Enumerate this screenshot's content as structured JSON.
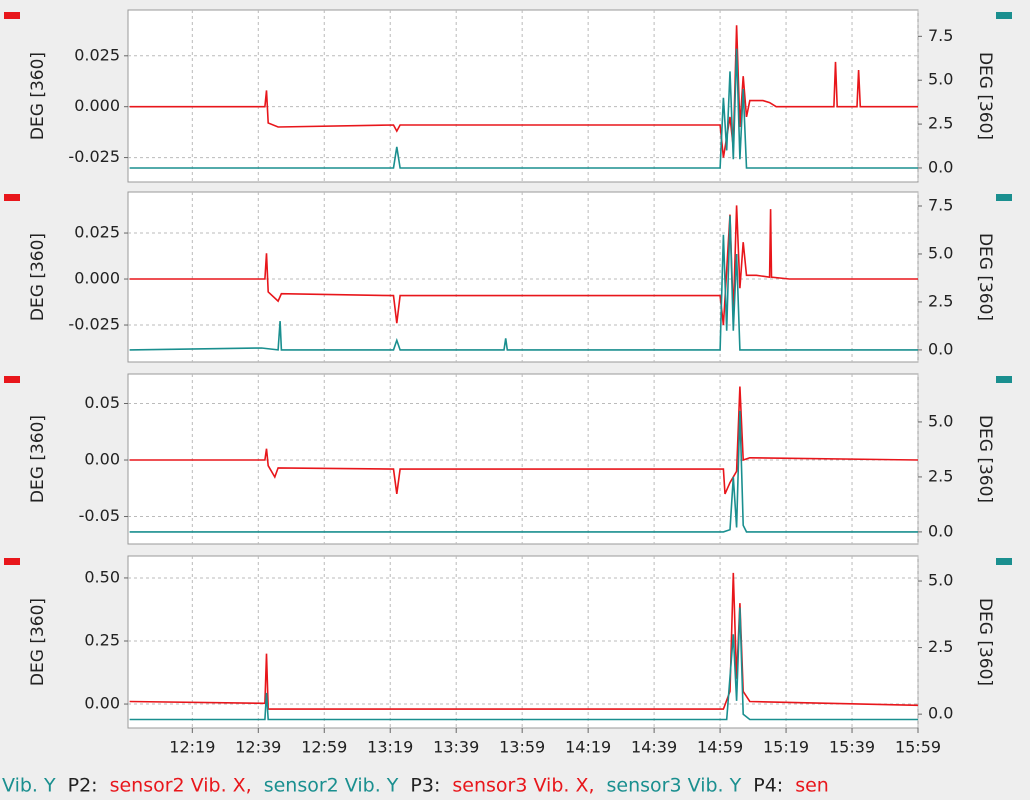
{
  "x_axis": {
    "xlim": [
      719.5,
      959
    ],
    "xticks": [
      {
        "value": 739,
        "label": "12:19"
      },
      {
        "value": 759,
        "label": "12:39"
      },
      {
        "value": 779,
        "label": "12:59"
      },
      {
        "value": 799,
        "label": "13:19"
      },
      {
        "value": 819,
        "label": "13:39"
      },
      {
        "value": 839,
        "label": "13:59"
      },
      {
        "value": 859,
        "label": "14:19"
      },
      {
        "value": 879,
        "label": "14:39"
      },
      {
        "value": 899,
        "label": "14:59"
      },
      {
        "value": 919,
        "label": "15:19"
      },
      {
        "value": 939,
        "label": "15:39"
      },
      {
        "value": 959,
        "label": "15:59"
      }
    ]
  },
  "chart_data": [
    {
      "type": "line",
      "ylabel": "DEG [360]",
      "y2label": "DEG [360]",
      "grid": true,
      "ylim": [
        -0.037,
        0.0475
      ],
      "yticks": [
        0.025,
        {
          "value": 0,
          "label": "0.000"
        },
        -0.025
      ],
      "y2lim": [
        -0.8,
        9.0
      ],
      "y2ticks": [
        7.5,
        {
          "value": 5,
          "label": "5.0"
        },
        2.5,
        {
          "value": 0,
          "label": "0.0"
        }
      ],
      "series": [
        {
          "color": "#e8161b",
          "x": [
            720,
            761,
            761.5,
            762,
            765,
            800,
            801,
            802,
            899,
            900,
            902,
            903,
            904,
            905,
            906,
            907,
            908,
            912,
            914,
            916,
            933.5,
            934,
            934.5,
            940.5,
            941,
            941.5,
            959
          ],
          "values": [
            0,
            0,
            0.008,
            -0.008,
            -0.01,
            -0.009,
            -0.012,
            -0.009,
            -0.009,
            -0.025,
            -0.005,
            -0.02,
            0.04,
            -0.01,
            0.015,
            -0.005,
            0.003,
            0.003,
            0.002,
            0,
            0,
            0.022,
            0,
            0,
            0.018,
            0,
            0
          ]
        },
        {
          "color": "#1a8f8f",
          "axis": "y2",
          "x": [
            720,
            800,
            801,
            802,
            899,
            900,
            901,
            902,
            903,
            904,
            905,
            906,
            907,
            959
          ],
          "values": [
            0,
            0,
            1.2,
            0,
            0,
            4.0,
            1.0,
            5.5,
            0.5,
            6.8,
            0.5,
            4.5,
            0,
            0
          ]
        }
      ]
    },
    {
      "type": "line",
      "ylabel": "DEG [360]",
      "y2label": "DEG [360]",
      "grid": true,
      "ylim": [
        -0.0451,
        0.0473
      ],
      "yticks": [
        0.025,
        {
          "value": 0,
          "label": "0.000"
        },
        -0.025
      ],
      "y2lim": [
        -0.63,
        8.23
      ],
      "y2ticks": [
        7.5,
        {
          "value": 5,
          "label": "5.0"
        },
        2.5,
        {
          "value": 0,
          "label": "0.0"
        }
      ],
      "series": [
        {
          "color": "#e8161b",
          "x": [
            720,
            761,
            761.5,
            762,
            765,
            766,
            800,
            801,
            802,
            899,
            900,
            902,
            903,
            904,
            905,
            906,
            907,
            910,
            914,
            914.3,
            914.6,
            920,
            959
          ],
          "values": [
            0,
            0,
            0.014,
            -0.007,
            -0.012,
            -0.008,
            -0.009,
            -0.024,
            -0.009,
            -0.009,
            -0.025,
            0.035,
            -0.02,
            0.04,
            -0.005,
            0.02,
            0.002,
            0.002,
            0.001,
            0.038,
            0.001,
            0,
            0
          ]
        },
        {
          "color": "#1a8f8f",
          "axis": "y2",
          "x": [
            720,
            760,
            765,
            765.6,
            766,
            800,
            801,
            802,
            833.5,
            834,
            834.5,
            899,
            900,
            901,
            902,
            903,
            904,
            905,
            959
          ],
          "values": [
            0,
            0.1,
            0,
            1.5,
            0,
            0,
            0.5,
            0,
            0,
            0.6,
            0,
            0,
            6.0,
            1.0,
            7.0,
            1.0,
            5.0,
            0,
            0
          ]
        }
      ]
    },
    {
      "type": "line",
      "ylabel": "DEG [360]",
      "y2label": "DEG [360]",
      "grid": true,
      "ylim": [
        -0.0743,
        0.0761
      ],
      "yticks": [
        0.05,
        {
          "value": 0,
          "label": "0.00"
        },
        -0.05
      ],
      "y2lim": [
        -0.55,
        7.18
      ],
      "y2ticks": [
        {
          "value": 5,
          "label": "5.0"
        },
        2.5,
        {
          "value": 0,
          "label": "0.0"
        }
      ],
      "series": [
        {
          "color": "#e8161b",
          "x": [
            720,
            761,
            761.5,
            762,
            764,
            765,
            800,
            801,
            802,
            900,
            900.5,
            902,
            904,
            905,
            906,
            908,
            959
          ],
          "values": [
            0,
            0,
            0.01,
            -0.005,
            -0.015,
            -0.007,
            -0.008,
            -0.03,
            -0.008,
            -0.008,
            -0.03,
            -0.02,
            -0.01,
            0.065,
            0,
            0.002,
            0
          ]
        },
        {
          "color": "#1a8f8f",
          "axis": "y2",
          "x": [
            720,
            900,
            902,
            903,
            904,
            905,
            906,
            907,
            959
          ],
          "values": [
            0,
            0,
            0.1,
            2.5,
            0.2,
            5.5,
            0.3,
            0,
            0
          ]
        }
      ]
    },
    {
      "type": "line",
      "ylabel": "DEG [360]",
      "y2label": "DEG [360]",
      "grid": true,
      "ylim": [
        -0.095,
        0.587
      ],
      "yticks": [
        {
          "value": 0.5,
          "label": "0.50"
        },
        0.25,
        {
          "value": 0,
          "label": "0.00"
        }
      ],
      "y2lim": [
        -0.52,
        5.94
      ],
      "y2ticks": [
        {
          "value": 5,
          "label": "5.0"
        },
        2.5,
        {
          "value": 0,
          "label": "0.0"
        }
      ],
      "series": [
        {
          "color": "#e8161b",
          "x": [
            720,
            761,
            761.5,
            762,
            900,
            902,
            903,
            904,
            905,
            906,
            908,
            959
          ],
          "values": [
            0.01,
            0.003,
            0.2,
            -0.02,
            -0.02,
            0.05,
            0.52,
            0.1,
            0.4,
            0.05,
            0.01,
            -0.005
          ]
        },
        {
          "color": "#1a8f8f",
          "axis": "y2",
          "x": [
            720,
            761,
            761.5,
            762,
            901,
            903,
            904,
            905,
            906,
            908,
            959
          ],
          "values": [
            -0.2,
            -0.2,
            0.8,
            -0.2,
            -0.2,
            3,
            0.5,
            4.0,
            0,
            -0.2,
            -0.2
          ]
        }
      ]
    }
  ],
  "legend": [
    {
      "text": "Vib. Y",
      "color": "#1a8f8f"
    },
    {
      "text": "P2:",
      "color": "#222222"
    },
    {
      "text": "sensor2 Vib. X,",
      "color": "#e8161b"
    },
    {
      "text": "sensor2 Vib. Y",
      "color": "#1a8f8f"
    },
    {
      "text": "P3:",
      "color": "#222222"
    },
    {
      "text": "sensor3 Vib. X,",
      "color": "#e8161b"
    },
    {
      "text": "sensor3 Vib. Y",
      "color": "#1a8f8f"
    },
    {
      "text": "P4:",
      "color": "#222222"
    },
    {
      "text": "sen",
      "color": "#e8161b"
    }
  ]
}
